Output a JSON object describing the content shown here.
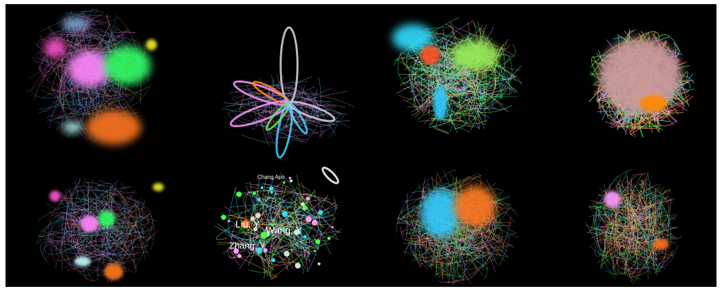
{
  "labels": [
    "Chang Apo",
    "Liu, Y",
    "Wang, Y",
    "Zhang, Y"
  ]
}
